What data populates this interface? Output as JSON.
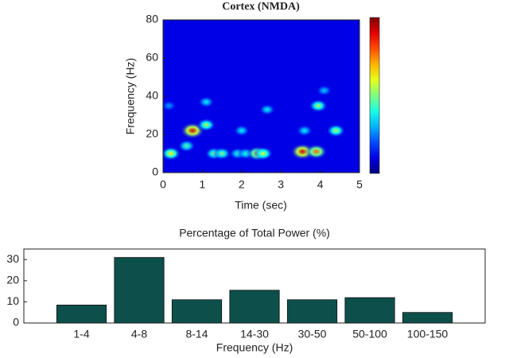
{
  "chart_data": [
    {
      "type": "heatmap",
      "title": "Cortex (NMDA)",
      "xlabel": "Time (sec)",
      "ylabel": "Frequency (Hz)",
      "xlim": [
        0,
        5
      ],
      "ylim": [
        0,
        80
      ],
      "xticks": [
        0,
        1,
        2,
        3,
        4,
        5
      ],
      "yticks": [
        0,
        20,
        40,
        60,
        80
      ],
      "clim": [
        0,
        1
      ],
      "x": [
        0.2,
        0.75,
        0.6,
        1.1,
        1.1,
        1.3,
        1.5,
        1.9,
        2.1,
        2.4,
        2.55,
        2.65,
        2.0,
        3.55,
        3.9,
        3.95,
        4.1,
        4.4,
        0.15,
        3.6
      ],
      "y": [
        10,
        22,
        14,
        25,
        37,
        10,
        10,
        10,
        10,
        10,
        10,
        33,
        22,
        11,
        11,
        35,
        43,
        22,
        35,
        22
      ],
      "values": [
        0.6,
        0.9,
        0.4,
        0.5,
        0.3,
        0.45,
        0.45,
        0.35,
        0.35,
        0.7,
        0.55,
        0.3,
        0.3,
        0.9,
        0.75,
        0.5,
        0.25,
        0.5,
        0.2,
        0.3
      ]
    },
    {
      "type": "bar",
      "title": "Percentage of Total Power (%)",
      "xlabel": "Frequency (Hz)",
      "categories": [
        "1-4",
        "4-8",
        "8-14",
        "14-30",
        "30-50",
        "50-100",
        "100-150"
      ],
      "values": [
        8.5,
        31,
        11,
        15.5,
        11,
        12,
        5
      ],
      "color": "#0d4f4a",
      "ylim": [
        0,
        35
      ],
      "yticks": [
        0,
        10,
        20,
        30
      ]
    }
  ]
}
